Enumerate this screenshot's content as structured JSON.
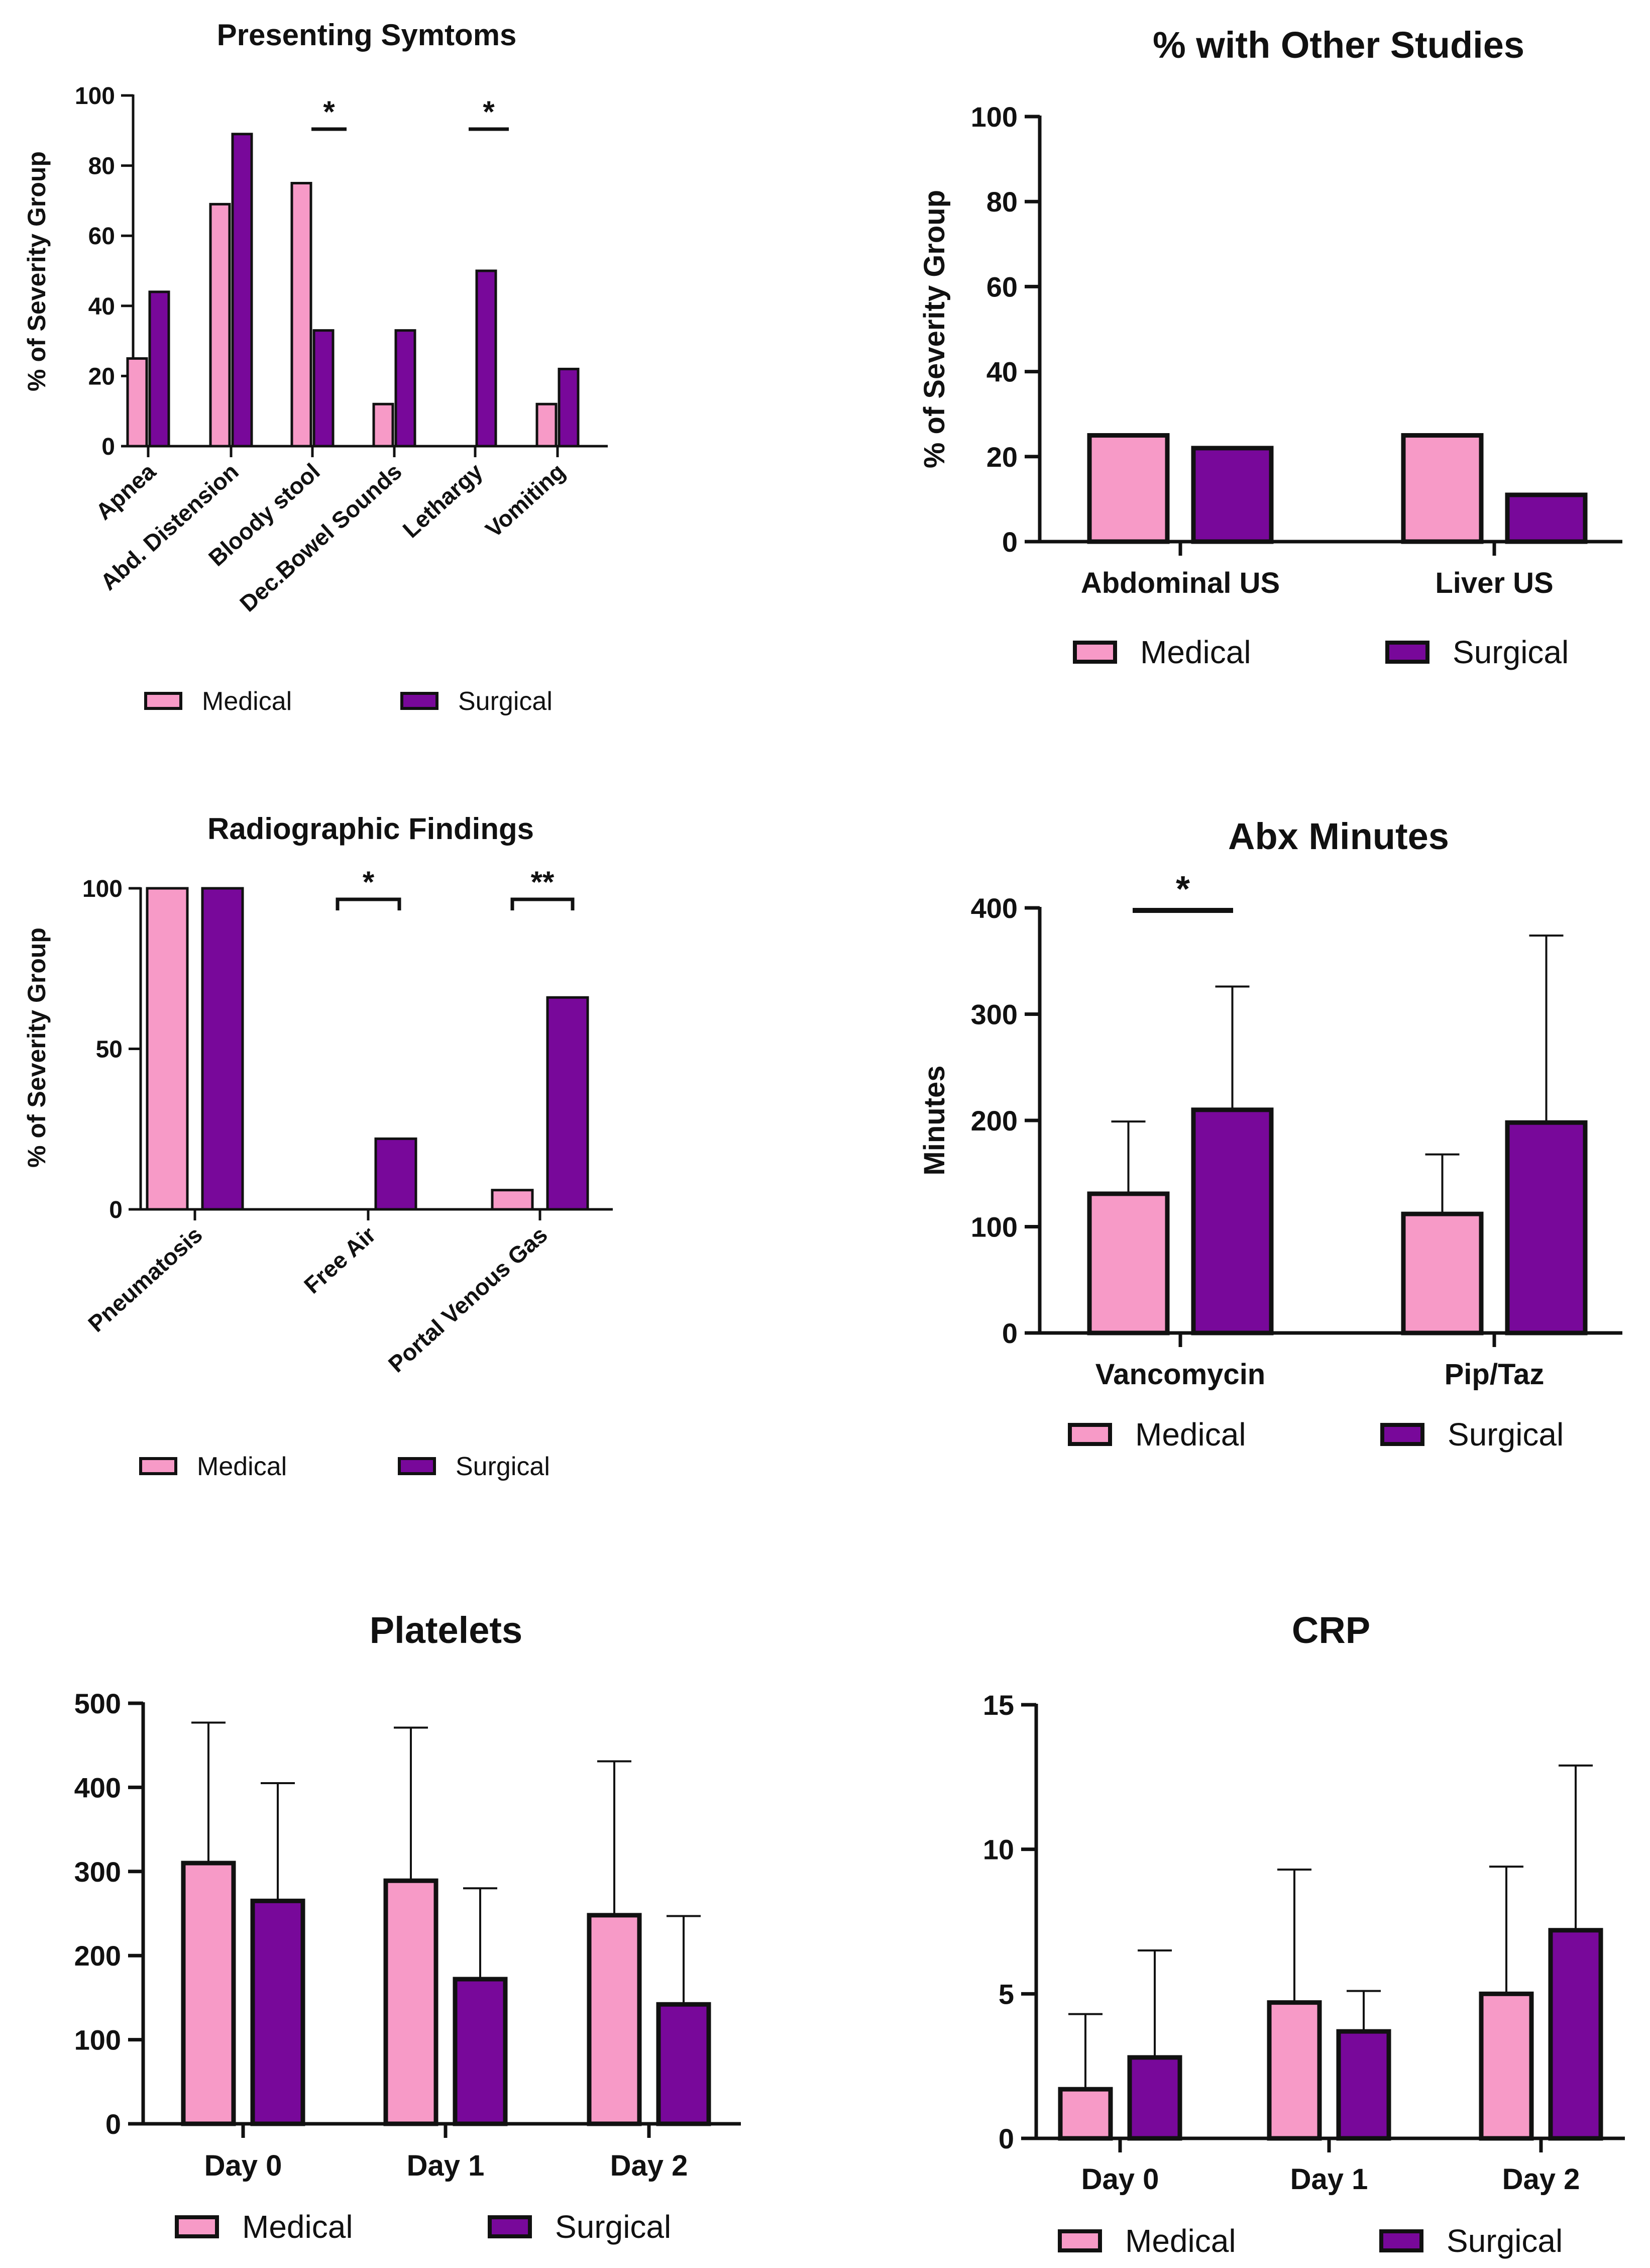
{
  "colors": {
    "medical": "#f79ac7",
    "surgical": "#78089a",
    "stroke": "#111111"
  },
  "legend": {
    "medical": "Medical",
    "surgical": "Surgical"
  },
  "chart_data": [
    {
      "id": "symptoms",
      "type": "bar",
      "title": "Presenting Symtoms",
      "ylabel": "% of Severity Group",
      "xlabel": "",
      "ylim": [
        0,
        100
      ],
      "yticks": [
        0,
        20,
        40,
        60,
        80,
        100
      ],
      "categories": [
        "Apnea",
        "Abd. Distension",
        "Bloody stool",
        "Dec.Bowel Sounds",
        "Lethargy",
        "Vomiting"
      ],
      "series": [
        {
          "name": "Medical",
          "values": [
            25,
            69,
            75,
            12,
            0,
            12
          ]
        },
        {
          "name": "Surgical",
          "values": [
            44,
            89,
            33,
            33,
            50,
            22
          ]
        }
      ],
      "significance": [
        {
          "category": "Bloody stool",
          "label": "*"
        },
        {
          "category": "Lethargy",
          "label": "*"
        }
      ],
      "legend": [
        "Medical",
        "Surgical"
      ]
    },
    {
      "id": "other_studies",
      "type": "bar",
      "title": "% with Other Studies",
      "ylabel": "% of Severity Group",
      "xlabel": "",
      "ylim": [
        0,
        100
      ],
      "yticks": [
        0,
        20,
        40,
        60,
        80,
        100
      ],
      "categories": [
        "Abdominal US",
        "Liver US"
      ],
      "series": [
        {
          "name": "Medical",
          "values": [
            25,
            25
          ]
        },
        {
          "name": "Surgical",
          "values": [
            22,
            11
          ]
        }
      ],
      "legend": [
        "Medical",
        "Surgical"
      ]
    },
    {
      "id": "radiographic",
      "type": "bar",
      "title": "Radiographic Findings",
      "ylabel": "% of Severity Group",
      "xlabel": "",
      "ylim": [
        0,
        100
      ],
      "yticks": [
        0,
        50,
        100
      ],
      "categories": [
        "Pneumatosis",
        "Free Air",
        "Portal Venous Gas"
      ],
      "series": [
        {
          "name": "Medical",
          "values": [
            100,
            0,
            6
          ]
        },
        {
          "name": "Surgical",
          "values": [
            100,
            22,
            66
          ]
        }
      ],
      "significance": [
        {
          "category": "Free Air",
          "label": "*"
        },
        {
          "category": "Portal Venous Gas",
          "label": "**"
        }
      ],
      "legend": [
        "Medical",
        "Surgical"
      ]
    },
    {
      "id": "abx",
      "type": "bar",
      "title": "Abx Minutes",
      "ylabel": "Minutes",
      "xlabel": "",
      "ylim": [
        0,
        400
      ],
      "yticks": [
        0,
        100,
        200,
        300,
        400
      ],
      "categories": [
        "Vancomycin",
        "Pip/Taz"
      ],
      "series": [
        {
          "name": "Medical",
          "values": [
            131,
            112
          ],
          "error_upper": [
            199,
            168
          ]
        },
        {
          "name": "Surgical",
          "values": [
            210,
            198
          ],
          "error_upper": [
            326,
            374
          ]
        }
      ],
      "significance": [
        {
          "category": "Vancomycin",
          "label": "*"
        }
      ],
      "legend": [
        "Medical",
        "Surgical"
      ]
    },
    {
      "id": "platelets",
      "type": "bar",
      "title": "Platelets",
      "ylabel": "",
      "xlabel": "",
      "ylim": [
        0,
        500
      ],
      "yticks": [
        0,
        100,
        200,
        300,
        400,
        500
      ],
      "categories": [
        "Day 0",
        "Day 1",
        "Day 2"
      ],
      "series": [
        {
          "name": "Medical",
          "values": [
            310,
            289,
            248
          ],
          "error_upper": [
            477,
            471,
            431
          ]
        },
        {
          "name": "Surgical",
          "values": [
            265,
            172,
            142
          ],
          "error_upper": [
            405,
            280,
            247
          ]
        }
      ],
      "legend": [
        "Medical",
        "Surgical"
      ]
    },
    {
      "id": "crp",
      "type": "bar",
      "title": "CRP",
      "ylabel": "",
      "xlabel": "",
      "ylim": [
        0,
        15
      ],
      "yticks": [
        0,
        5,
        10,
        15
      ],
      "categories": [
        "Day 0",
        "Day 1",
        "Day 2"
      ],
      "series": [
        {
          "name": "Medical",
          "values": [
            1.7,
            4.7,
            5.0
          ],
          "error_upper": [
            4.3,
            9.3,
            9.4
          ]
        },
        {
          "name": "Surgical",
          "values": [
            2.8,
            3.7,
            7.2
          ],
          "error_upper": [
            6.5,
            5.1,
            12.9
          ]
        }
      ],
      "legend": [
        "Medical",
        "Surgical"
      ]
    }
  ]
}
